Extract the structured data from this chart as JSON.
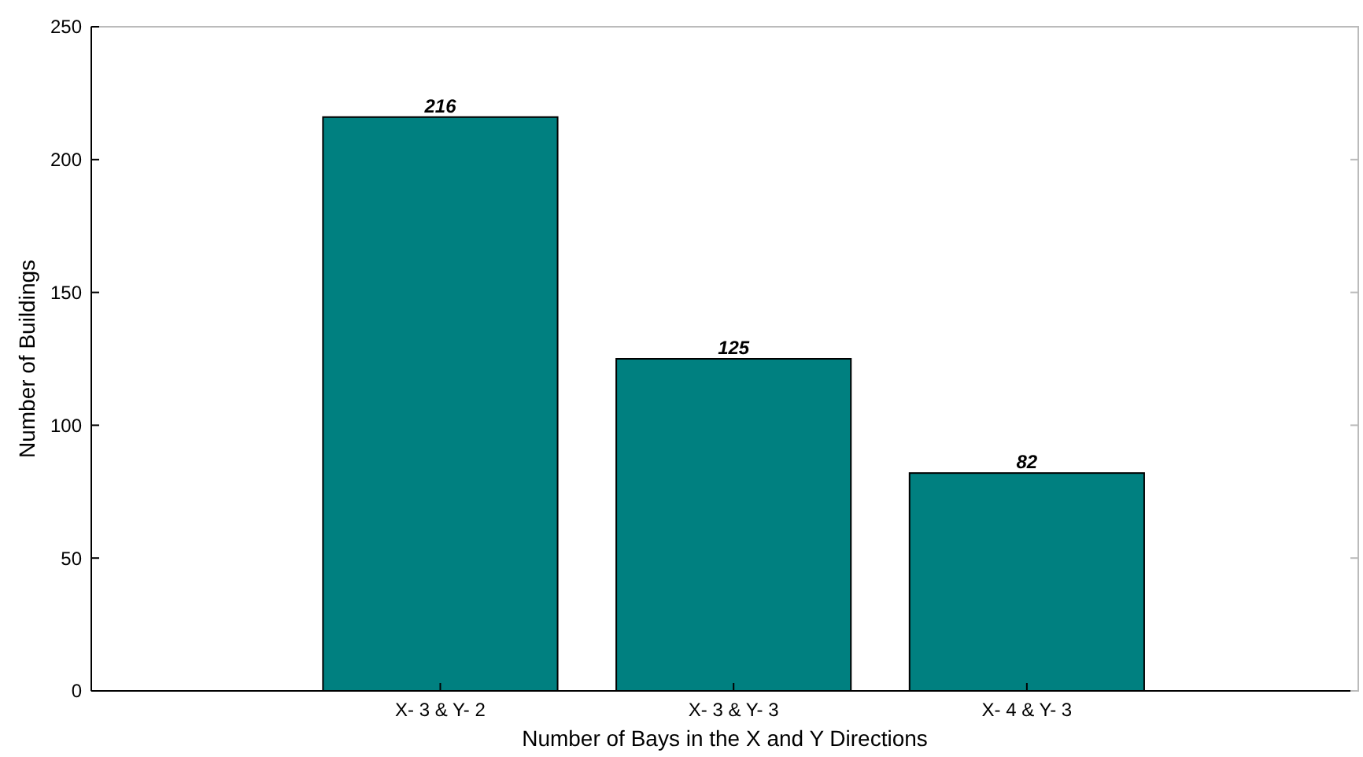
{
  "chart_data": {
    "type": "bar",
    "xlabel": "Number of Bays in the X and Y Directions",
    "ylabel": "Number of Buildings",
    "categories": [
      "X- 3 & Y- 2",
      "X- 3 & Y- 3",
      "X- 4 & Y- 3"
    ],
    "values": [
      216,
      125,
      82
    ],
    "color": "#008080",
    "ylim": [
      0,
      250
    ],
    "yticks": [
      0,
      50,
      100,
      150,
      200,
      250
    ],
    "data_labels": true,
    "grid": false
  }
}
